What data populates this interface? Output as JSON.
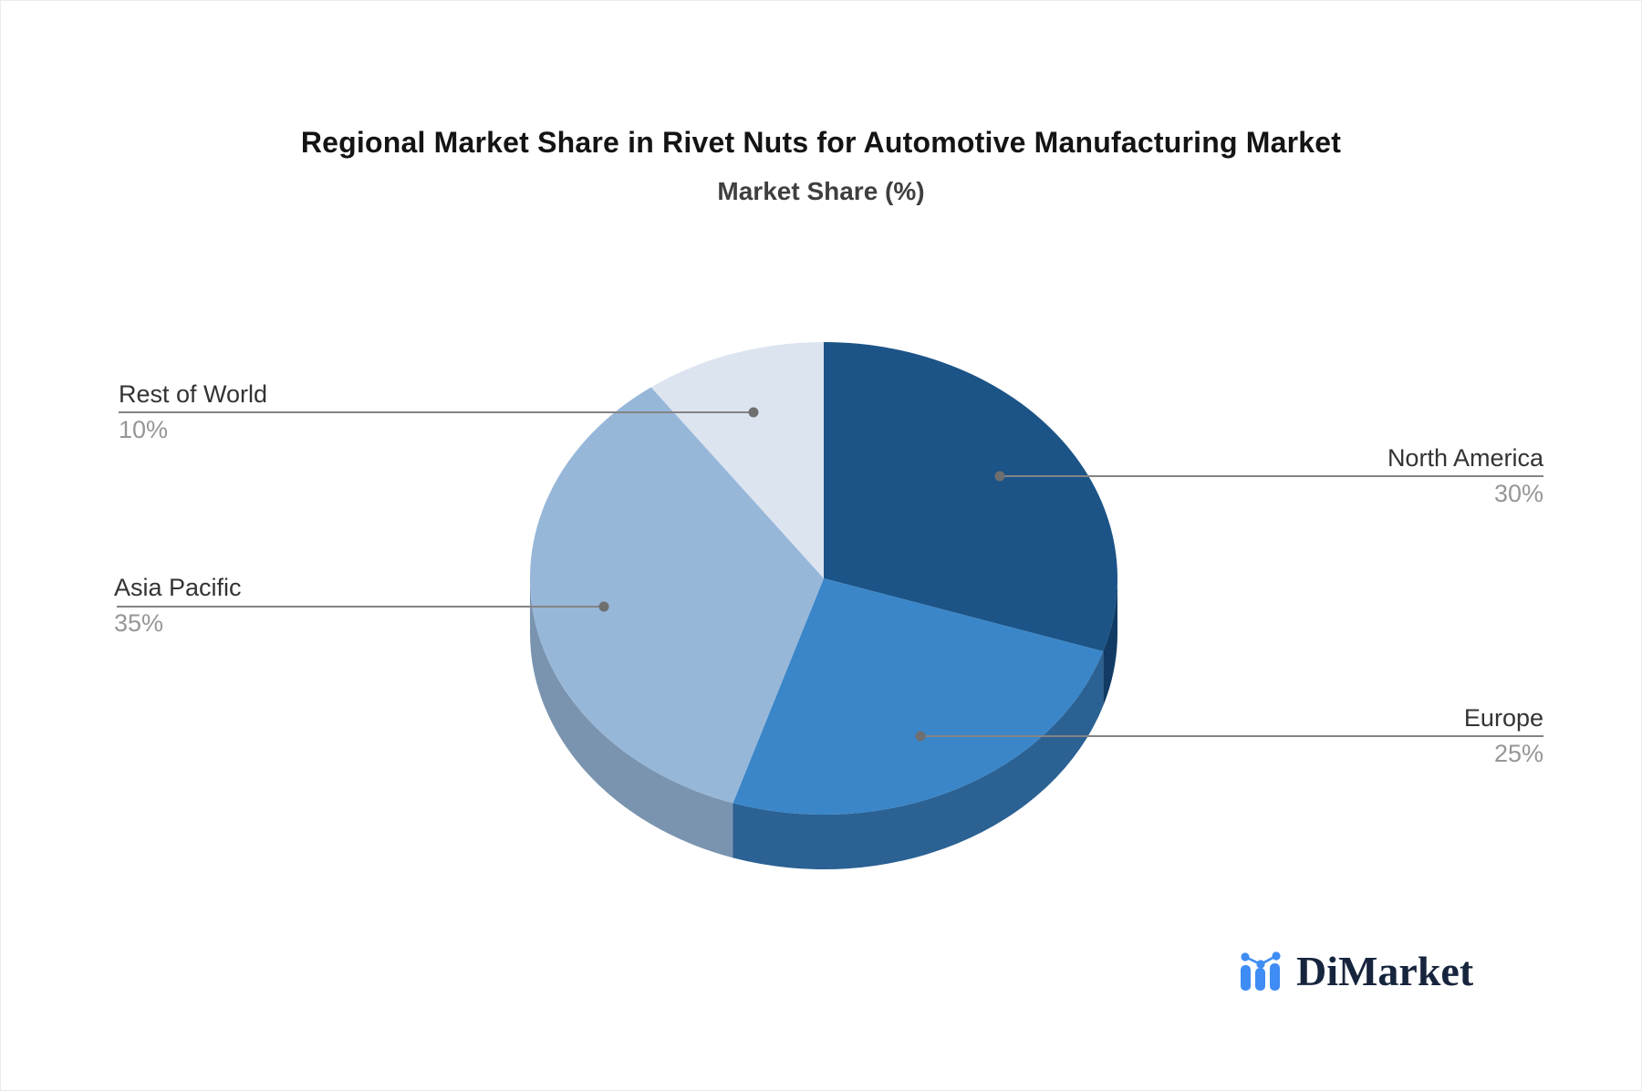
{
  "chart_data": {
    "type": "pie",
    "style": "3d",
    "title": "Regional Market Share in Rivet Nuts for Automotive Manufacturing Market",
    "subtitle": "Market Share (%)",
    "unit": "%",
    "legend_position": "none",
    "labels_style": "callout-leader-lines",
    "start_angle_deg": 0,
    "direction": "clockwise",
    "slices": [
      {
        "label": "North America",
        "value": 30,
        "display_value": "30%",
        "color": "#1c5487",
        "side_color": "#113b63"
      },
      {
        "label": "Europe",
        "value": 25,
        "display_value": "25%",
        "color": "#3a86c8",
        "side_color": "#2b6193"
      },
      {
        "label": "Asia Pacific",
        "value": 35,
        "display_value": "35%",
        "color": "#97b7d9",
        "side_color": "#7a94b0"
      },
      {
        "label": "Rest of World",
        "value": 10,
        "display_value": "10%",
        "color": "#dce4f0",
        "side_color": "#afbdd1"
      }
    ],
    "colors": {
      "leader_line": "#848484",
      "leader_dot": "#6f6f6f",
      "label_text": "#333333",
      "value_text": "#969696",
      "background": "#ffffff"
    }
  },
  "logo": {
    "brand": "DiMarket",
    "icon": "bar-line-chart-icon",
    "icon_color": "#3e8cf4",
    "text_color": "#17243d"
  }
}
